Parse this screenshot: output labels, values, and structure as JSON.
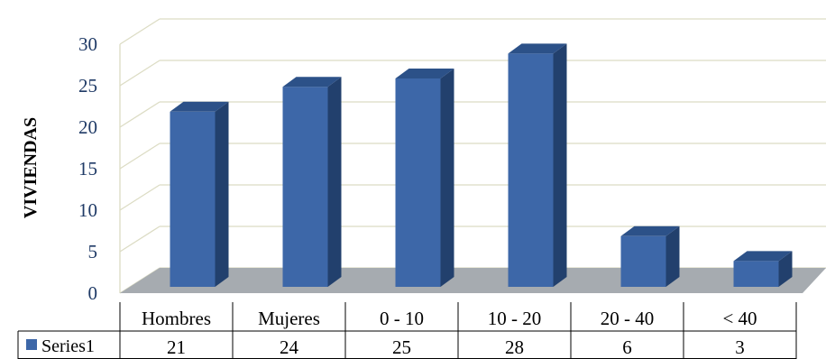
{
  "chart_data": {
    "type": "bar",
    "ylabel": "VIVIENDAS",
    "ylim": [
      0,
      30
    ],
    "yticks": [
      0,
      5,
      10,
      15,
      20,
      25,
      30
    ],
    "categories": [
      "Hombres",
      "Mujeres",
      "0 - 10",
      "10 - 20",
      "20 - 40",
      "< 40"
    ],
    "series": [
      {
        "name": "Series1",
        "values": [
          21,
          24,
          25,
          28,
          6,
          3
        ]
      }
    ],
    "grid": true,
    "data_table": true,
    "colors": {
      "bar_front": "#3d67a8",
      "bar_side": "#22406d",
      "bar_top": "#2c5188",
      "floor": "#a6abb0",
      "grid": "#dcdcc4"
    }
  }
}
